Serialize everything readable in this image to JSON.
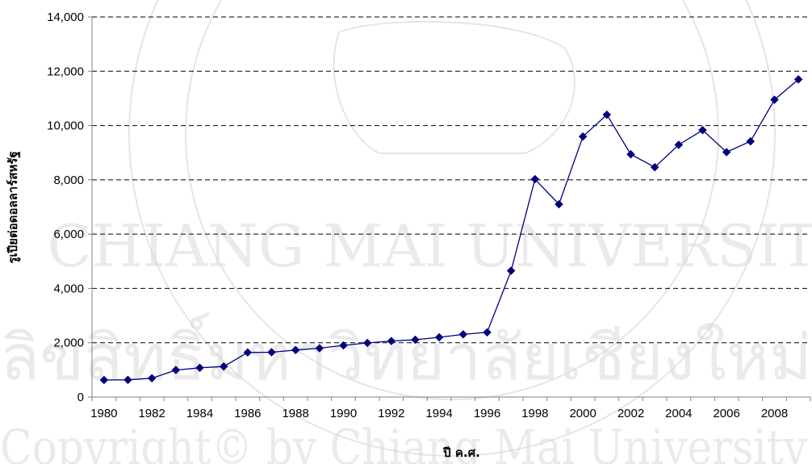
{
  "chart_data": {
    "type": "line",
    "xlabel": "ปี ค.ศ.",
    "ylabel": "รูเปียต่อดอลลาร์สหรัฐ",
    "ylim": [
      0,
      14000
    ],
    "y_ticks": [
      "0",
      "2,000",
      "4,000",
      "6,000",
      "8,000",
      "10,000",
      "12,000",
      "14,000"
    ],
    "x_ticks": [
      "1980",
      "1982",
      "1984",
      "1986",
      "1988",
      "1990",
      "1992",
      "1994",
      "1996",
      "1998",
      "2000",
      "2002",
      "2004",
      "2006",
      "2008"
    ],
    "grid": "horizontal dashed",
    "series": [
      {
        "color": "#000080",
        "marker": "diamond",
        "x": [
          1980,
          1981,
          1982,
          1983,
          1984,
          1985,
          1986,
          1987,
          1988,
          1989,
          1990,
          1991,
          1992,
          1993,
          1994,
          1995,
          1996,
          1997,
          1998,
          1999,
          2000,
          2001,
          2002,
          2003,
          2004,
          2005,
          2006,
          2007,
          2008,
          2009
        ],
        "values": [
          627,
          632,
          693,
          994,
          1076,
          1125,
          1641,
          1650,
          1731,
          1797,
          1901,
          1992,
          2062,
          2110,
          2200,
          2308,
          2383,
          4650,
          8025,
          7100,
          9595,
          10400,
          8940,
          8465,
          9290,
          9830,
          9020,
          9419,
          10950,
          11700
        ]
      }
    ]
  },
  "watermark": {
    "texts": [
      "CHIANG MAI UNIVERSITY",
      "ลิขสิทธิ์มหาวิทยาลัยเชียงใหม่",
      "Copyright© by Chiang Mai University"
    ]
  }
}
